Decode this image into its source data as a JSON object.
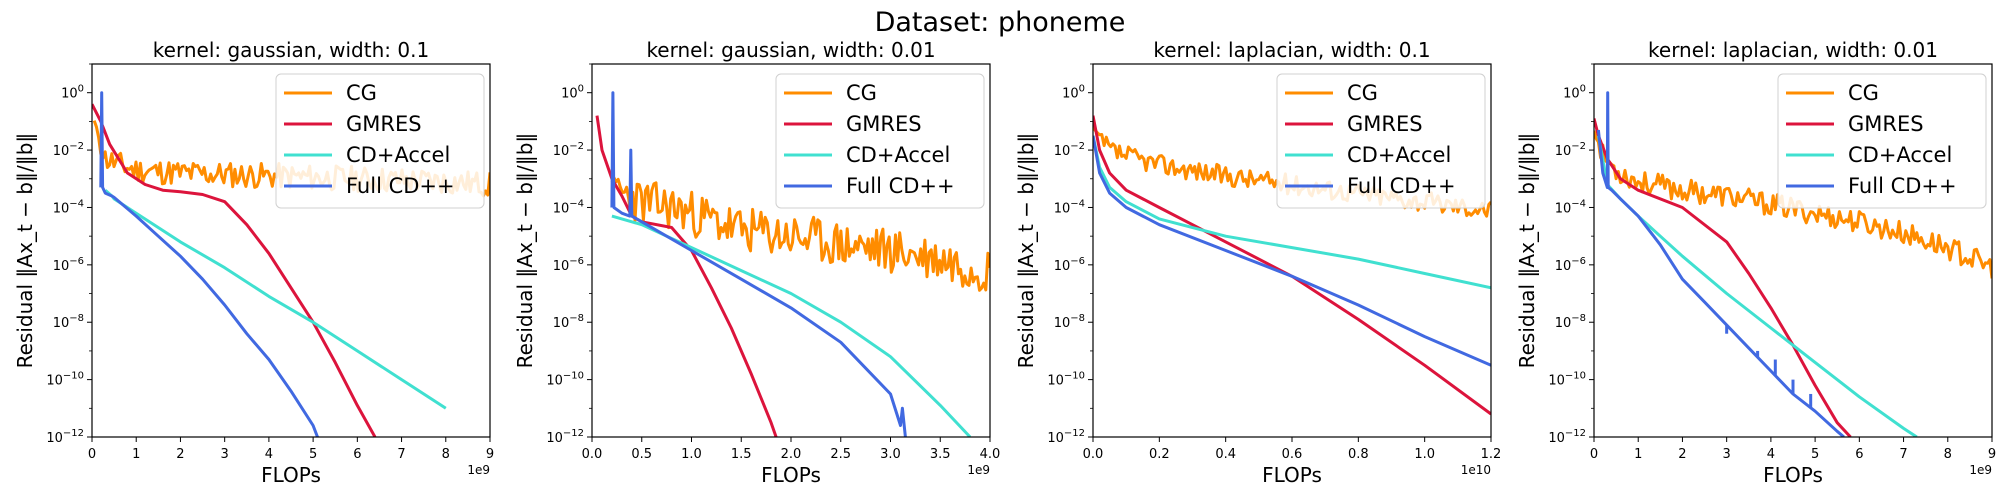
{
  "figure": {
    "suptitle": "Dataset: phoneme"
  },
  "colors": {
    "CG": "#ff8c00",
    "GMRES": "#dc143c",
    "CD+Accel": "#40e0d0",
    "Full CD++": "#4169e1"
  },
  "chart_data": [
    {
      "type": "line",
      "title": "kernel: gaussian, width: 0.1",
      "xlabel": "FLOPs",
      "ylabel": "Residual ‖Ax_t − b‖/‖b‖",
      "x_scale_label": "1e9",
      "xlim": [
        0,
        9
      ],
      "ylog": true,
      "ylim_exp": [
        -12,
        1
      ],
      "xticks": [
        0,
        1,
        2,
        3,
        4,
        5,
        6,
        7,
        8,
        9
      ],
      "xtick_labels": [
        "0",
        "1",
        "2",
        "3",
        "4",
        "5",
        "6",
        "7",
        "8",
        "9"
      ],
      "ytick_exps": [
        0,
        -2,
        -4,
        -6,
        -8,
        -10,
        -12
      ],
      "legend_loc": "upper right",
      "series": [
        {
          "name": "CG",
          "color": "#ff8c00",
          "noise": 0.45,
          "seed": 11,
          "x": [
            0.05,
            0.3,
            0.6,
            1.0,
            2.0,
            4.0,
            6.0,
            8.0,
            9.0
          ],
          "logy": [
            -1,
            -2.3,
            -2.5,
            -2.7,
            -2.8,
            -2.9,
            -3.0,
            -3.1,
            -3.2
          ]
        },
        {
          "name": "GMRES",
          "color": "#dc143c",
          "x": [
            0.0,
            0.2,
            0.4,
            0.8,
            1.2,
            1.6,
            2.0,
            2.5,
            3.0,
            3.5,
            4.0,
            4.5,
            5.0,
            5.5,
            6.0,
            6.4
          ],
          "logy": [
            -0.4,
            -1.0,
            -1.8,
            -2.8,
            -3.2,
            -3.4,
            -3.45,
            -3.55,
            -3.8,
            -4.6,
            -5.6,
            -6.8,
            -8.0,
            -9.4,
            -10.9,
            -12.0
          ]
        },
        {
          "name": "CD+Accel",
          "color": "#40e0d0",
          "x": [
            0.3,
            0.45,
            0.5,
            1.0,
            2.0,
            3.0,
            4.0,
            5.0,
            6.0,
            7.0,
            8.0
          ],
          "logy": [
            -3.4,
            -3.6,
            -3.7,
            -4.2,
            -5.2,
            -6.1,
            -7.1,
            -8.0,
            -9.0,
            -10.0,
            -11.0
          ]
        },
        {
          "name": "Full CD++",
          "color": "#4169e1",
          "x": [
            0.2,
            0.22,
            0.24,
            0.3,
            0.45,
            0.5,
            1.0,
            1.5,
            2.0,
            2.5,
            3.0,
            3.5,
            4.0,
            4.5,
            5.0,
            5.1
          ],
          "logy": [
            -3.3,
            0.0,
            -3.3,
            -3.5,
            -3.6,
            -3.65,
            -4.3,
            -5.0,
            -5.7,
            -6.5,
            -7.4,
            -8.4,
            -9.3,
            -10.4,
            -11.6,
            -12.0
          ]
        }
      ]
    },
    {
      "type": "line",
      "title": "kernel: gaussian, width: 0.01",
      "xlabel": "FLOPs",
      "ylabel": "Residual ‖Ax_t − b‖/‖b‖",
      "x_scale_label": "1e9",
      "xlim": [
        0,
        4
      ],
      "ylog": true,
      "ylim_exp": [
        -12,
        1
      ],
      "xticks": [
        0,
        0.5,
        1,
        1.5,
        2,
        2.5,
        3,
        3.5,
        4
      ],
      "xtick_labels": [
        "0.0",
        "0.5",
        "1.0",
        "1.5",
        "2.0",
        "2.5",
        "3.0",
        "3.5",
        "4.0"
      ],
      "ytick_exps": [
        0,
        -2,
        -4,
        -6,
        -8,
        -10,
        -12
      ],
      "legend_loc": "upper right",
      "series": [
        {
          "name": "CG",
          "color": "#ff8c00",
          "noise": 0.8,
          "seed": 23,
          "x": [
            0.2,
            0.3,
            0.5,
            0.8,
            1.0,
            1.5,
            2.0,
            2.5,
            3.0,
            3.5,
            4.0
          ],
          "logy": [
            -3.0,
            -3.5,
            -3.8,
            -4.0,
            -4.2,
            -4.8,
            -5.0,
            -5.3,
            -5.5,
            -5.8,
            -6.2
          ]
        },
        {
          "name": "GMRES",
          "color": "#dc143c",
          "x": [
            0.05,
            0.1,
            0.2,
            0.3,
            0.4,
            0.5,
            0.8,
            1.0,
            1.2,
            1.4,
            1.6,
            1.8,
            1.85
          ],
          "logy": [
            -0.8,
            -2.0,
            -3.0,
            -3.6,
            -4.3,
            -4.5,
            -4.7,
            -5.5,
            -6.8,
            -8.2,
            -9.8,
            -11.5,
            -12.0
          ]
        },
        {
          "name": "CD+Accel",
          "color": "#40e0d0",
          "x": [
            0.2,
            0.4,
            0.5,
            1.0,
            1.5,
            2.0,
            2.5,
            3.0,
            3.5,
            3.8
          ],
          "logy": [
            -4.3,
            -4.5,
            -4.6,
            -5.4,
            -6.2,
            -7.0,
            -8.0,
            -9.2,
            -10.9,
            -12.0
          ]
        },
        {
          "name": "Full CD++",
          "color": "#4169e1",
          "x": [
            0.2,
            0.21,
            0.22,
            0.3,
            0.38,
            0.39,
            0.4,
            0.5,
            1.0,
            1.5,
            2.0,
            2.5,
            3.0,
            3.1,
            3.12,
            3.15
          ],
          "logy": [
            -4.0,
            0.0,
            -4.0,
            -4.2,
            -4.3,
            -2.0,
            -4.3,
            -4.5,
            -5.5,
            -6.5,
            -7.5,
            -8.7,
            -10.5,
            -11.6,
            -11.0,
            -12.0
          ]
        }
      ]
    },
    {
      "type": "line",
      "title": "kernel: laplacian, width: 0.1",
      "xlabel": "FLOPs",
      "ylabel": "Residual ‖Ax_t − b‖/‖b‖",
      "x_scale_label": "1e10",
      "xlim": [
        0,
        1.2
      ],
      "ylog": true,
      "ylim_exp": [
        -12,
        1
      ],
      "xticks": [
        0,
        0.2,
        0.4,
        0.6,
        0.8,
        1.0,
        1.2
      ],
      "xtick_labels": [
        "0.0",
        "0.2",
        "0.4",
        "0.6",
        "0.8",
        "1.0",
        "1.2"
      ],
      "ytick_exps": [
        0,
        -2,
        -4,
        -6,
        -8,
        -10,
        -12
      ],
      "legend_loc": "upper right",
      "series": [
        {
          "name": "CG",
          "color": "#ff8c00",
          "noise": 0.35,
          "seed": 37,
          "x": [
            0.0,
            0.02,
            0.05,
            0.1,
            0.2,
            0.4,
            0.6,
            0.8,
            1.0,
            1.2
          ],
          "logy": [
            -1.2,
            -1.6,
            -2.0,
            -2.2,
            -2.5,
            -2.9,
            -3.2,
            -3.5,
            -3.8,
            -4.1
          ]
        },
        {
          "name": "GMRES",
          "color": "#dc143c",
          "x": [
            0.0,
            0.02,
            0.05,
            0.1,
            0.2,
            0.3,
            0.4,
            0.6,
            0.8,
            1.0,
            1.2
          ],
          "logy": [
            -0.8,
            -2.0,
            -2.8,
            -3.4,
            -4.0,
            -4.6,
            -5.2,
            -6.4,
            -7.9,
            -9.5,
            -11.2
          ]
        },
        {
          "name": "CD+Accel",
          "color": "#40e0d0",
          "x": [
            0.0,
            0.02,
            0.05,
            0.1,
            0.2,
            0.4,
            0.6,
            0.8,
            1.0,
            1.2
          ],
          "logy": [
            -1.5,
            -2.6,
            -3.3,
            -3.8,
            -4.4,
            -5.0,
            -5.4,
            -5.8,
            -6.3,
            -6.8
          ]
        },
        {
          "name": "Full CD++",
          "color": "#4169e1",
          "x": [
            0.0,
            0.02,
            0.05,
            0.1,
            0.2,
            0.4,
            0.6,
            0.8,
            1.0,
            1.2
          ],
          "logy": [
            -1.5,
            -2.8,
            -3.5,
            -4.0,
            -4.6,
            -5.5,
            -6.4,
            -7.4,
            -8.5,
            -9.5
          ]
        }
      ]
    },
    {
      "type": "line",
      "title": "kernel: laplacian, width: 0.01",
      "xlabel": "FLOPs",
      "ylabel": "Residual ‖Ax_t − b‖/‖b‖",
      "x_scale_label": "1e9",
      "xlim": [
        0,
        9
      ],
      "ylog": true,
      "ylim_exp": [
        -12,
        1
      ],
      "xticks": [
        0,
        1,
        2,
        3,
        4,
        5,
        6,
        7,
        8,
        9
      ],
      "xtick_labels": [
        "0",
        "1",
        "2",
        "3",
        "4",
        "5",
        "6",
        "7",
        "8",
        "9"
      ],
      "ytick_exps": [
        0,
        -2,
        -4,
        -6,
        -8,
        -10,
        -12
      ],
      "legend_loc": "upper right",
      "series": [
        {
          "name": "CG",
          "color": "#ff8c00",
          "noise": 0.4,
          "seed": 53,
          "x": [
            0.0,
            0.2,
            0.5,
            1.0,
            2.0,
            3.0,
            4.0,
            5.0,
            6.0,
            7.0,
            8.0,
            9.0
          ],
          "logy": [
            -1.3,
            -2.2,
            -2.7,
            -3.1,
            -3.4,
            -3.6,
            -3.9,
            -4.2,
            -4.5,
            -4.9,
            -5.4,
            -6.1
          ]
        },
        {
          "name": "GMRES",
          "color": "#dc143c",
          "x": [
            0.0,
            0.1,
            0.3,
            0.6,
            1.0,
            2.0,
            3.0,
            3.5,
            4.0,
            4.5,
            5.0,
            5.5,
            5.8
          ],
          "logy": [
            -0.9,
            -1.5,
            -2.3,
            -3.0,
            -3.4,
            -4.0,
            -5.2,
            -6.3,
            -7.5,
            -8.8,
            -10.2,
            -11.5,
            -12.0
          ]
        },
        {
          "name": "CD+Accel",
          "color": "#40e0d0",
          "x": [
            0.1,
            0.3,
            0.6,
            1.0,
            1.5,
            2.0,
            3.0,
            4.0,
            5.0,
            6.0,
            7.0,
            7.3
          ],
          "logy": [
            -1.5,
            -3.2,
            -3.7,
            -4.3,
            -5.0,
            -5.7,
            -7.0,
            -8.2,
            -9.4,
            -10.6,
            -11.7,
            -12.0
          ]
        },
        {
          "name": "Full CD++",
          "color": "#4169e1",
          "x": [
            0.1,
            0.2,
            0.3,
            0.31,
            0.32,
            0.4,
            0.6,
            1.0,
            1.5,
            2.0,
            2.5,
            3.0,
            3.5,
            4.0,
            4.5,
            5.0,
            5.5,
            5.65
          ],
          "logy": [
            -1.3,
            -2.8,
            -3.3,
            0.0,
            -3.3,
            -3.4,
            -3.7,
            -4.3,
            -5.3,
            -6.5,
            -7.3,
            -8.1,
            -8.9,
            -9.7,
            -10.5,
            -11.1,
            -11.8,
            -12.0
          ],
          "spikes": [
            {
              "x": 3.0,
              "logy": -8.4
            },
            {
              "x": 3.3,
              "logy": -8.6
            },
            {
              "x": 3.7,
              "logy": -9.0
            },
            {
              "x": 4.1,
              "logy": -9.3
            },
            {
              "x": 4.5,
              "logy": -10.0
            },
            {
              "x": 4.9,
              "logy": -10.5
            }
          ]
        }
      ]
    }
  ]
}
